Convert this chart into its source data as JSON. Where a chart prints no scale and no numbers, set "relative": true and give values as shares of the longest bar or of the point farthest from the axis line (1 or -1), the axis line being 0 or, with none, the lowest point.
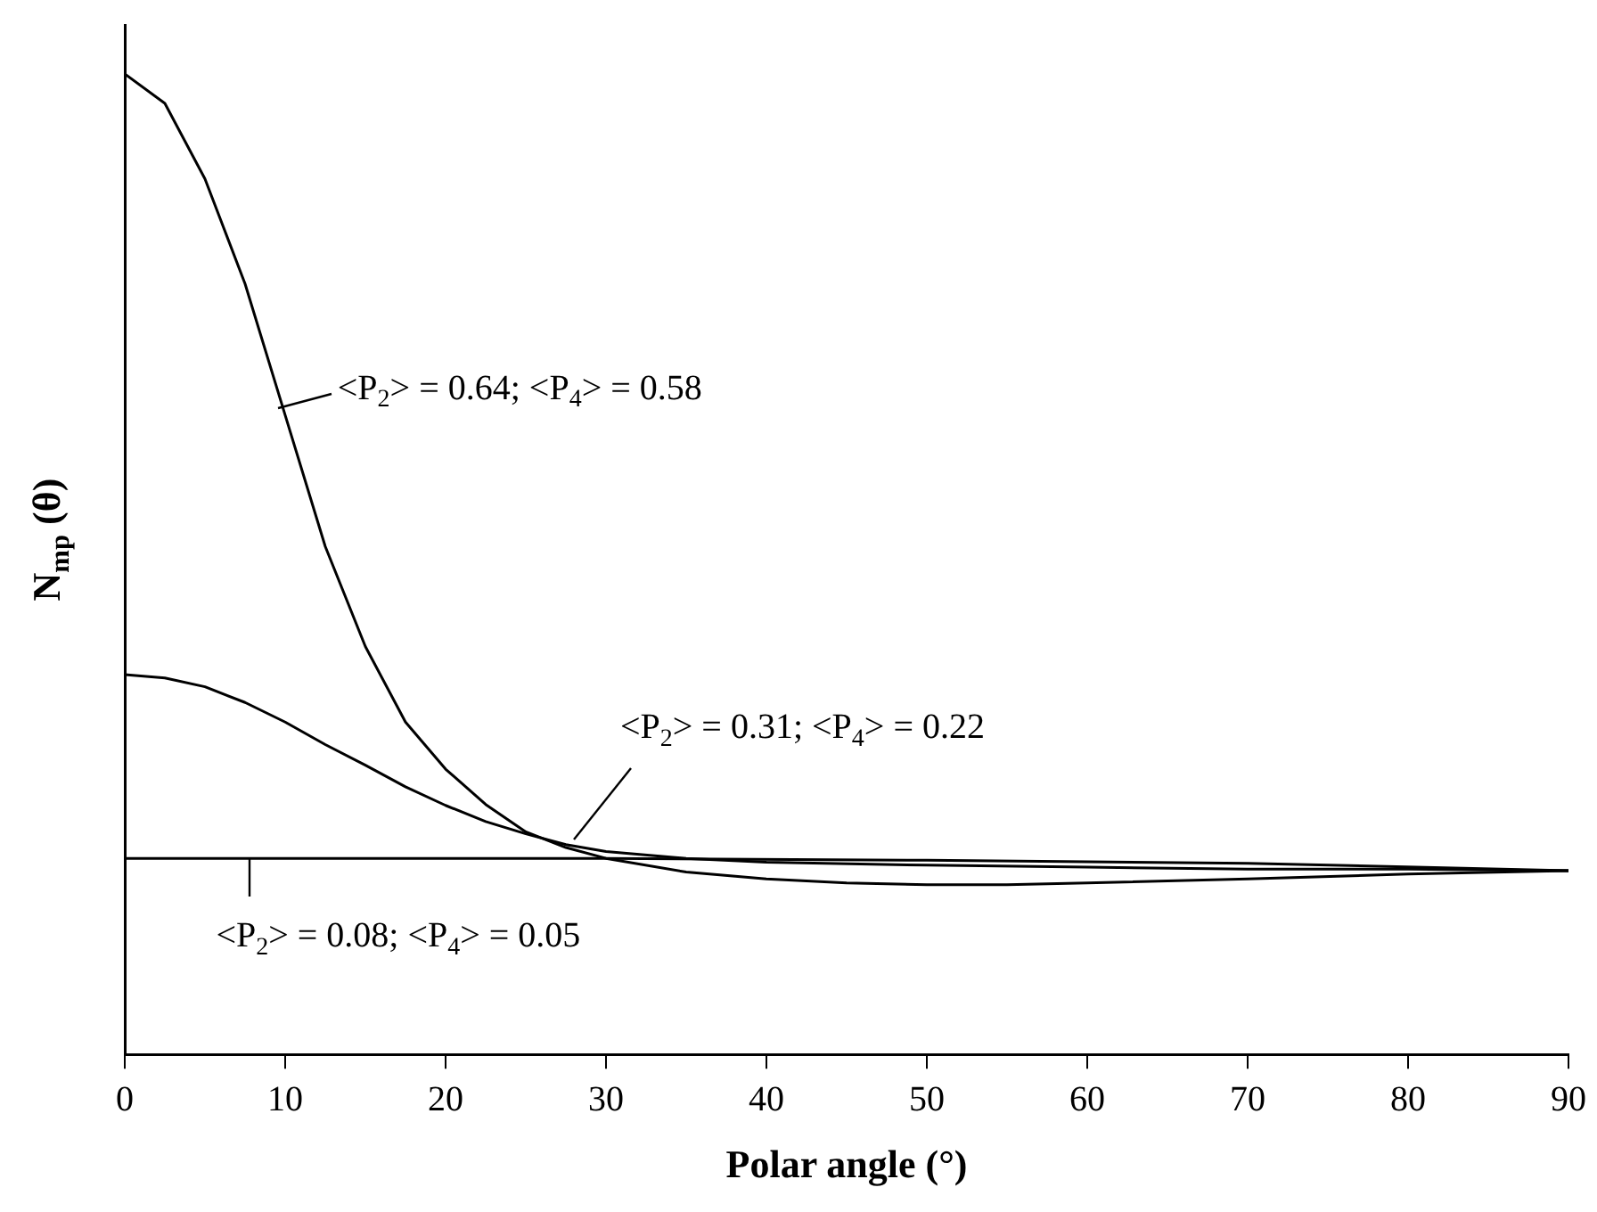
{
  "chart_data": {
    "type": "line",
    "relative": true,
    "xlabel": "Polar angle (°)",
    "ylabel": "N$_{mp}$ (θ)",
    "xlim": [
      0,
      90
    ],
    "xticks": [
      0,
      10,
      20,
      30,
      40,
      50,
      60,
      70,
      80,
      90
    ],
    "grid": false,
    "legend": false,
    "marker": "none",
    "line_style": "solid",
    "series": [
      {
        "color": "#000000",
        "x": [
          0,
          2.5,
          5,
          7.5,
          10,
          12.5,
          15,
          17.5,
          20,
          22.5,
          25,
          27.5,
          30,
          35,
          40,
          45,
          50,
          55,
          60,
          70,
          80,
          90
        ],
        "values": [
          1.0,
          0.97,
          0.893,
          0.786,
          0.652,
          0.518,
          0.416,
          0.339,
          0.291,
          0.255,
          0.227,
          0.211,
          0.2,
          0.186,
          0.179,
          0.175,
          0.173,
          0.173,
          0.175,
          0.179,
          0.184,
          0.1875
        ]
      },
      {
        "color": "#000000",
        "x": [
          0,
          2.5,
          5,
          7.5,
          10,
          12.5,
          15,
          17.5,
          20,
          22.5,
          25,
          27.5,
          30,
          35,
          40,
          50,
          60,
          70,
          80,
          90
        ],
        "values": [
          0.3875,
          0.384,
          0.375,
          0.359,
          0.339,
          0.316,
          0.295,
          0.273,
          0.254,
          0.2375,
          0.225,
          0.214,
          0.207,
          0.2,
          0.196,
          0.193,
          0.191,
          0.189,
          0.189,
          0.1875
        ]
      },
      {
        "color": "#000000",
        "x": [
          0,
          30,
          50,
          70,
          90
        ],
        "values": [
          0.2,
          0.2,
          0.198,
          0.195,
          0.1875
        ]
      }
    ],
    "annotations": [
      {
        "text": "<P$_{2}$> = 0.64; <P$_{4}$> = 0.58",
        "x": 9.6,
        "y": 0.66
      },
      {
        "text": "<P$_{2}$> = 0.31; <P$_{4}$> = 0.22",
        "x": 28,
        "y": 0.22
      },
      {
        "text": "<P$_{2}$> = 0.08; <P$_{4}$> = 0.05",
        "x": 7.8,
        "y": 0.2
      }
    ]
  }
}
